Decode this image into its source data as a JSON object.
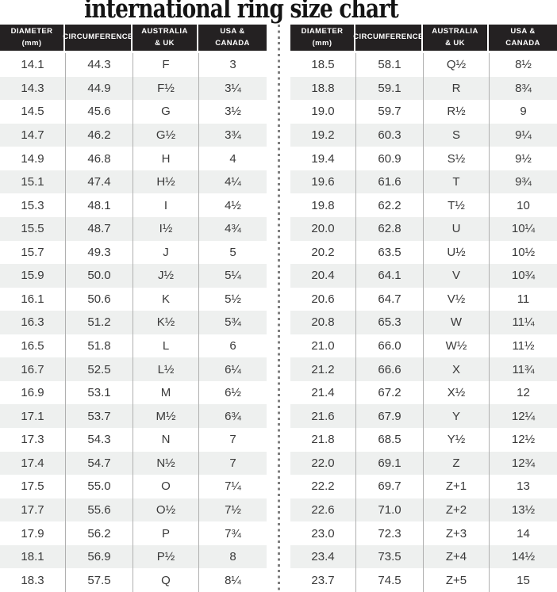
{
  "title": "international ring size chart",
  "colors": {
    "header_bg": "#242122",
    "header_text": "#ffffff",
    "row_stripe": "#eef0ef",
    "row_white": "#ffffff",
    "body_text": "#3a3a3a",
    "column_rule": "#b0b0b0",
    "divider_dot": "#7f7f7f",
    "title_color": "#141414"
  },
  "chart_data": {
    "type": "table",
    "title": "international ring size chart",
    "columns": [
      "DIAMETER (mm)",
      "CIRCUMFERENCE",
      "AUSTRALIA & UK",
      "USA & CANADA"
    ],
    "header_labels": [
      "DIAMETER\n(mm)",
      "CIRCUMFERENCE",
      "AUSTRALIA\n& UK",
      "USA &\nCANADA"
    ],
    "tables": [
      {
        "rows": [
          [
            "14.1",
            "44.3",
            "F",
            "3"
          ],
          [
            "14.3",
            "44.9",
            "F½",
            "3¼"
          ],
          [
            "14.5",
            "45.6",
            "G",
            "3½"
          ],
          [
            "14.7",
            "46.2",
            "G½",
            "3¾"
          ],
          [
            "14.9",
            "46.8",
            "H",
            "4"
          ],
          [
            "15.1",
            "47.4",
            "H½",
            "4¼"
          ],
          [
            "15.3",
            "48.1",
            "I",
            "4½"
          ],
          [
            "15.5",
            "48.7",
            "I½",
            "4¾"
          ],
          [
            "15.7",
            "49.3",
            "J",
            "5"
          ],
          [
            "15.9",
            "50.0",
            "J½",
            "5¼"
          ],
          [
            "16.1",
            "50.6",
            "K",
            "5½"
          ],
          [
            "16.3",
            "51.2",
            "K½",
            "5¾"
          ],
          [
            "16.5",
            "51.8",
            "L",
            "6"
          ],
          [
            "16.7",
            "52.5",
            "L½",
            "6¼"
          ],
          [
            "16.9",
            "53.1",
            "M",
            "6½"
          ],
          [
            "17.1",
            "53.7",
            "M½",
            "6¾"
          ],
          [
            "17.3",
            "54.3",
            "N",
            "7"
          ],
          [
            "17.4",
            "54.7",
            "N½",
            "7"
          ],
          [
            "17.5",
            "55.0",
            "O",
            "7¼"
          ],
          [
            "17.7",
            "55.6",
            "O½",
            "7½"
          ],
          [
            "17.9",
            "56.2",
            "P",
            "7¾"
          ],
          [
            "18.1",
            "56.9",
            "P½",
            "8"
          ],
          [
            "18.3",
            "57.5",
            "Q",
            "8¼"
          ]
        ]
      },
      {
        "rows": [
          [
            "18.5",
            "58.1",
            "Q½",
            "8½"
          ],
          [
            "18.8",
            "59.1",
            "R",
            "8¾"
          ],
          [
            "19.0",
            "59.7",
            "R½",
            "9"
          ],
          [
            "19.2",
            "60.3",
            "S",
            "9¼"
          ],
          [
            "19.4",
            "60.9",
            "S½",
            "9½"
          ],
          [
            "19.6",
            "61.6",
            "T",
            "9¾"
          ],
          [
            "19.8",
            "62.2",
            "T½",
            "10"
          ],
          [
            "20.0",
            "62.8",
            "U",
            "10¼"
          ],
          [
            "20.2",
            "63.5",
            "U½",
            "10½"
          ],
          [
            "20.4",
            "64.1",
            "V",
            "10¾"
          ],
          [
            "20.6",
            "64.7",
            "V½",
            "11"
          ],
          [
            "20.8",
            "65.3",
            "W",
            "11¼"
          ],
          [
            "21.0",
            "66.0",
            "W½",
            "11½"
          ],
          [
            "21.2",
            "66.6",
            "X",
            "11¾"
          ],
          [
            "21.4",
            "67.2",
            "X½",
            "12"
          ],
          [
            "21.6",
            "67.9",
            "Y",
            "12¼"
          ],
          [
            "21.8",
            "68.5",
            "Y½",
            "12½"
          ],
          [
            "22.0",
            "69.1",
            "Z",
            "12¾"
          ],
          [
            "22.2",
            "69.7",
            "Z+1",
            "13"
          ],
          [
            "22.6",
            "71.0",
            "Z+2",
            "13½"
          ],
          [
            "23.0",
            "72.3",
            "Z+3",
            "14"
          ],
          [
            "23.4",
            "73.5",
            "Z+4",
            "14½"
          ],
          [
            "23.7",
            "74.5",
            "Z+5",
            "15"
          ]
        ]
      }
    ]
  }
}
